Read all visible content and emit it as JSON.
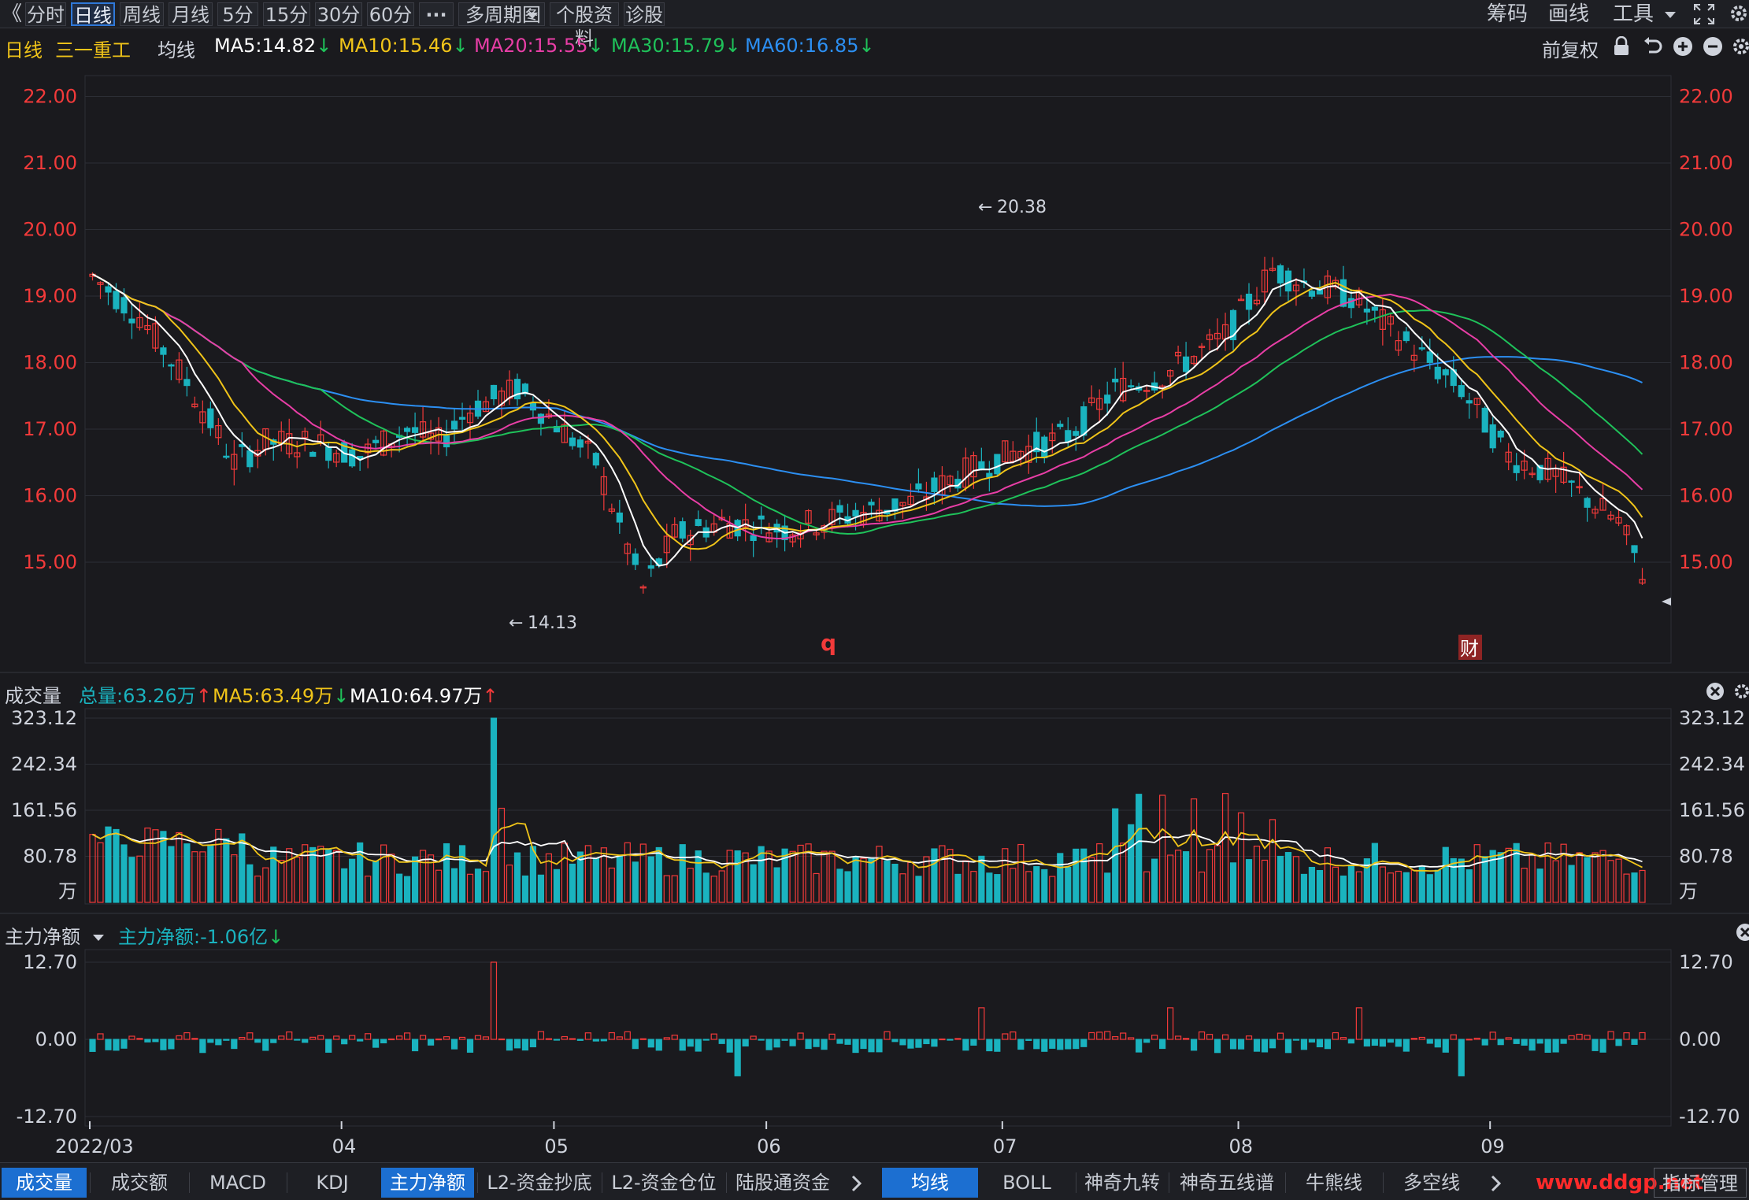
{
  "toolbar": {
    "back_icon": "chevron-left-icon",
    "periods": [
      "分时",
      "日线",
      "周线",
      "月线",
      "5分",
      "15分",
      "30分",
      "60分"
    ],
    "active_period": "日线",
    "more_label": "···",
    "multi_period": "多周期图",
    "stock_info": "个股资料",
    "diagnose": "诊股",
    "right": {
      "chips": "筹码",
      "draw": "画线",
      "tools": "工具"
    }
  },
  "info": {
    "period": "日线",
    "stock_name": "三一重工",
    "ma_label": "均线",
    "ma5": "MA5:14.82",
    "ma10": "MA10:15.46",
    "ma20": "MA20:15.55",
    "ma30": "MA30:15.79",
    "ma60": "MA60:16.85",
    "adjust": "前复权"
  },
  "volume_head": {
    "title": "成交量",
    "total": "总量:63.26万",
    "ma5": "MA5:63.49万",
    "ma10": "MA10:64.97万"
  },
  "flow_head": {
    "title": "主力净额",
    "value": "主力净额:-1.06亿"
  },
  "colors": {
    "up": "#f23a3a",
    "down": "#1ab3bf",
    "ma5": "#ffffff",
    "ma10": "#f0c419",
    "ma20": "#e83ea6",
    "ma30": "#1fc25a",
    "ma60": "#2c8ff2",
    "grid": "#2c2e35",
    "price_label": "#f23a3a"
  },
  "markers": {
    "q_label": "q",
    "cai_label": "财",
    "high_label": "20.38",
    "low_label": "14.13"
  },
  "bottom_tabs": {
    "left": [
      "成交量",
      "成交额",
      "MACD",
      "KDJ",
      "主力净额",
      "L2-资金抄底",
      "L2-资金仓位",
      "陆股通资金"
    ],
    "left_active": [
      "成交量",
      "主力净额"
    ],
    "right": [
      "均线",
      "BOLL",
      "神奇九转",
      "神奇五线谱",
      "牛熊线",
      "多空线"
    ],
    "right_active": "均线",
    "manage": "指标管理",
    "watermark": "www.ddgp.net"
  },
  "chart_data": [
    {
      "type": "candlestick",
      "title": "三一重工 日线",
      "y_ticks": [
        "22.00",
        "21.00",
        "20.00",
        "19.00",
        "18.00",
        "17.00",
        "16.00",
        "15.00"
      ],
      "ylim": [
        14.0,
        22.0
      ],
      "x_ticks": [
        "2022/03",
        "04",
        "05",
        "06",
        "07",
        "08",
        "09"
      ],
      "high_marker": "20.38",
      "low_marker": "14.13",
      "series": [
        {
          "name": "MA5",
          "value": "14.82"
        },
        {
          "name": "MA10",
          "value": "15.46"
        },
        {
          "name": "MA20",
          "value": "15.55"
        },
        {
          "name": "MA30",
          "value": "15.79"
        },
        {
          "name": "MA60",
          "value": "16.85"
        }
      ]
    },
    {
      "type": "bar",
      "title": "成交量",
      "unit": "万",
      "y_ticks": [
        "323.12",
        "242.34",
        "161.56",
        "80.78"
      ],
      "ylim": [
        0,
        323.12
      ],
      "series": [
        {
          "name": "总量",
          "value": "63.26万"
        },
        {
          "name": "MA5",
          "value": "63.49万"
        },
        {
          "name": "MA10",
          "value": "64.97万"
        }
      ]
    },
    {
      "type": "bar",
      "title": "主力净额",
      "y_ticks": [
        "12.70",
        "0.00",
        "-12.70"
      ],
      "ylim": [
        -12.7,
        12.7
      ],
      "series": [
        {
          "name": "主力净额",
          "value": "-1.06亿"
        }
      ]
    }
  ]
}
